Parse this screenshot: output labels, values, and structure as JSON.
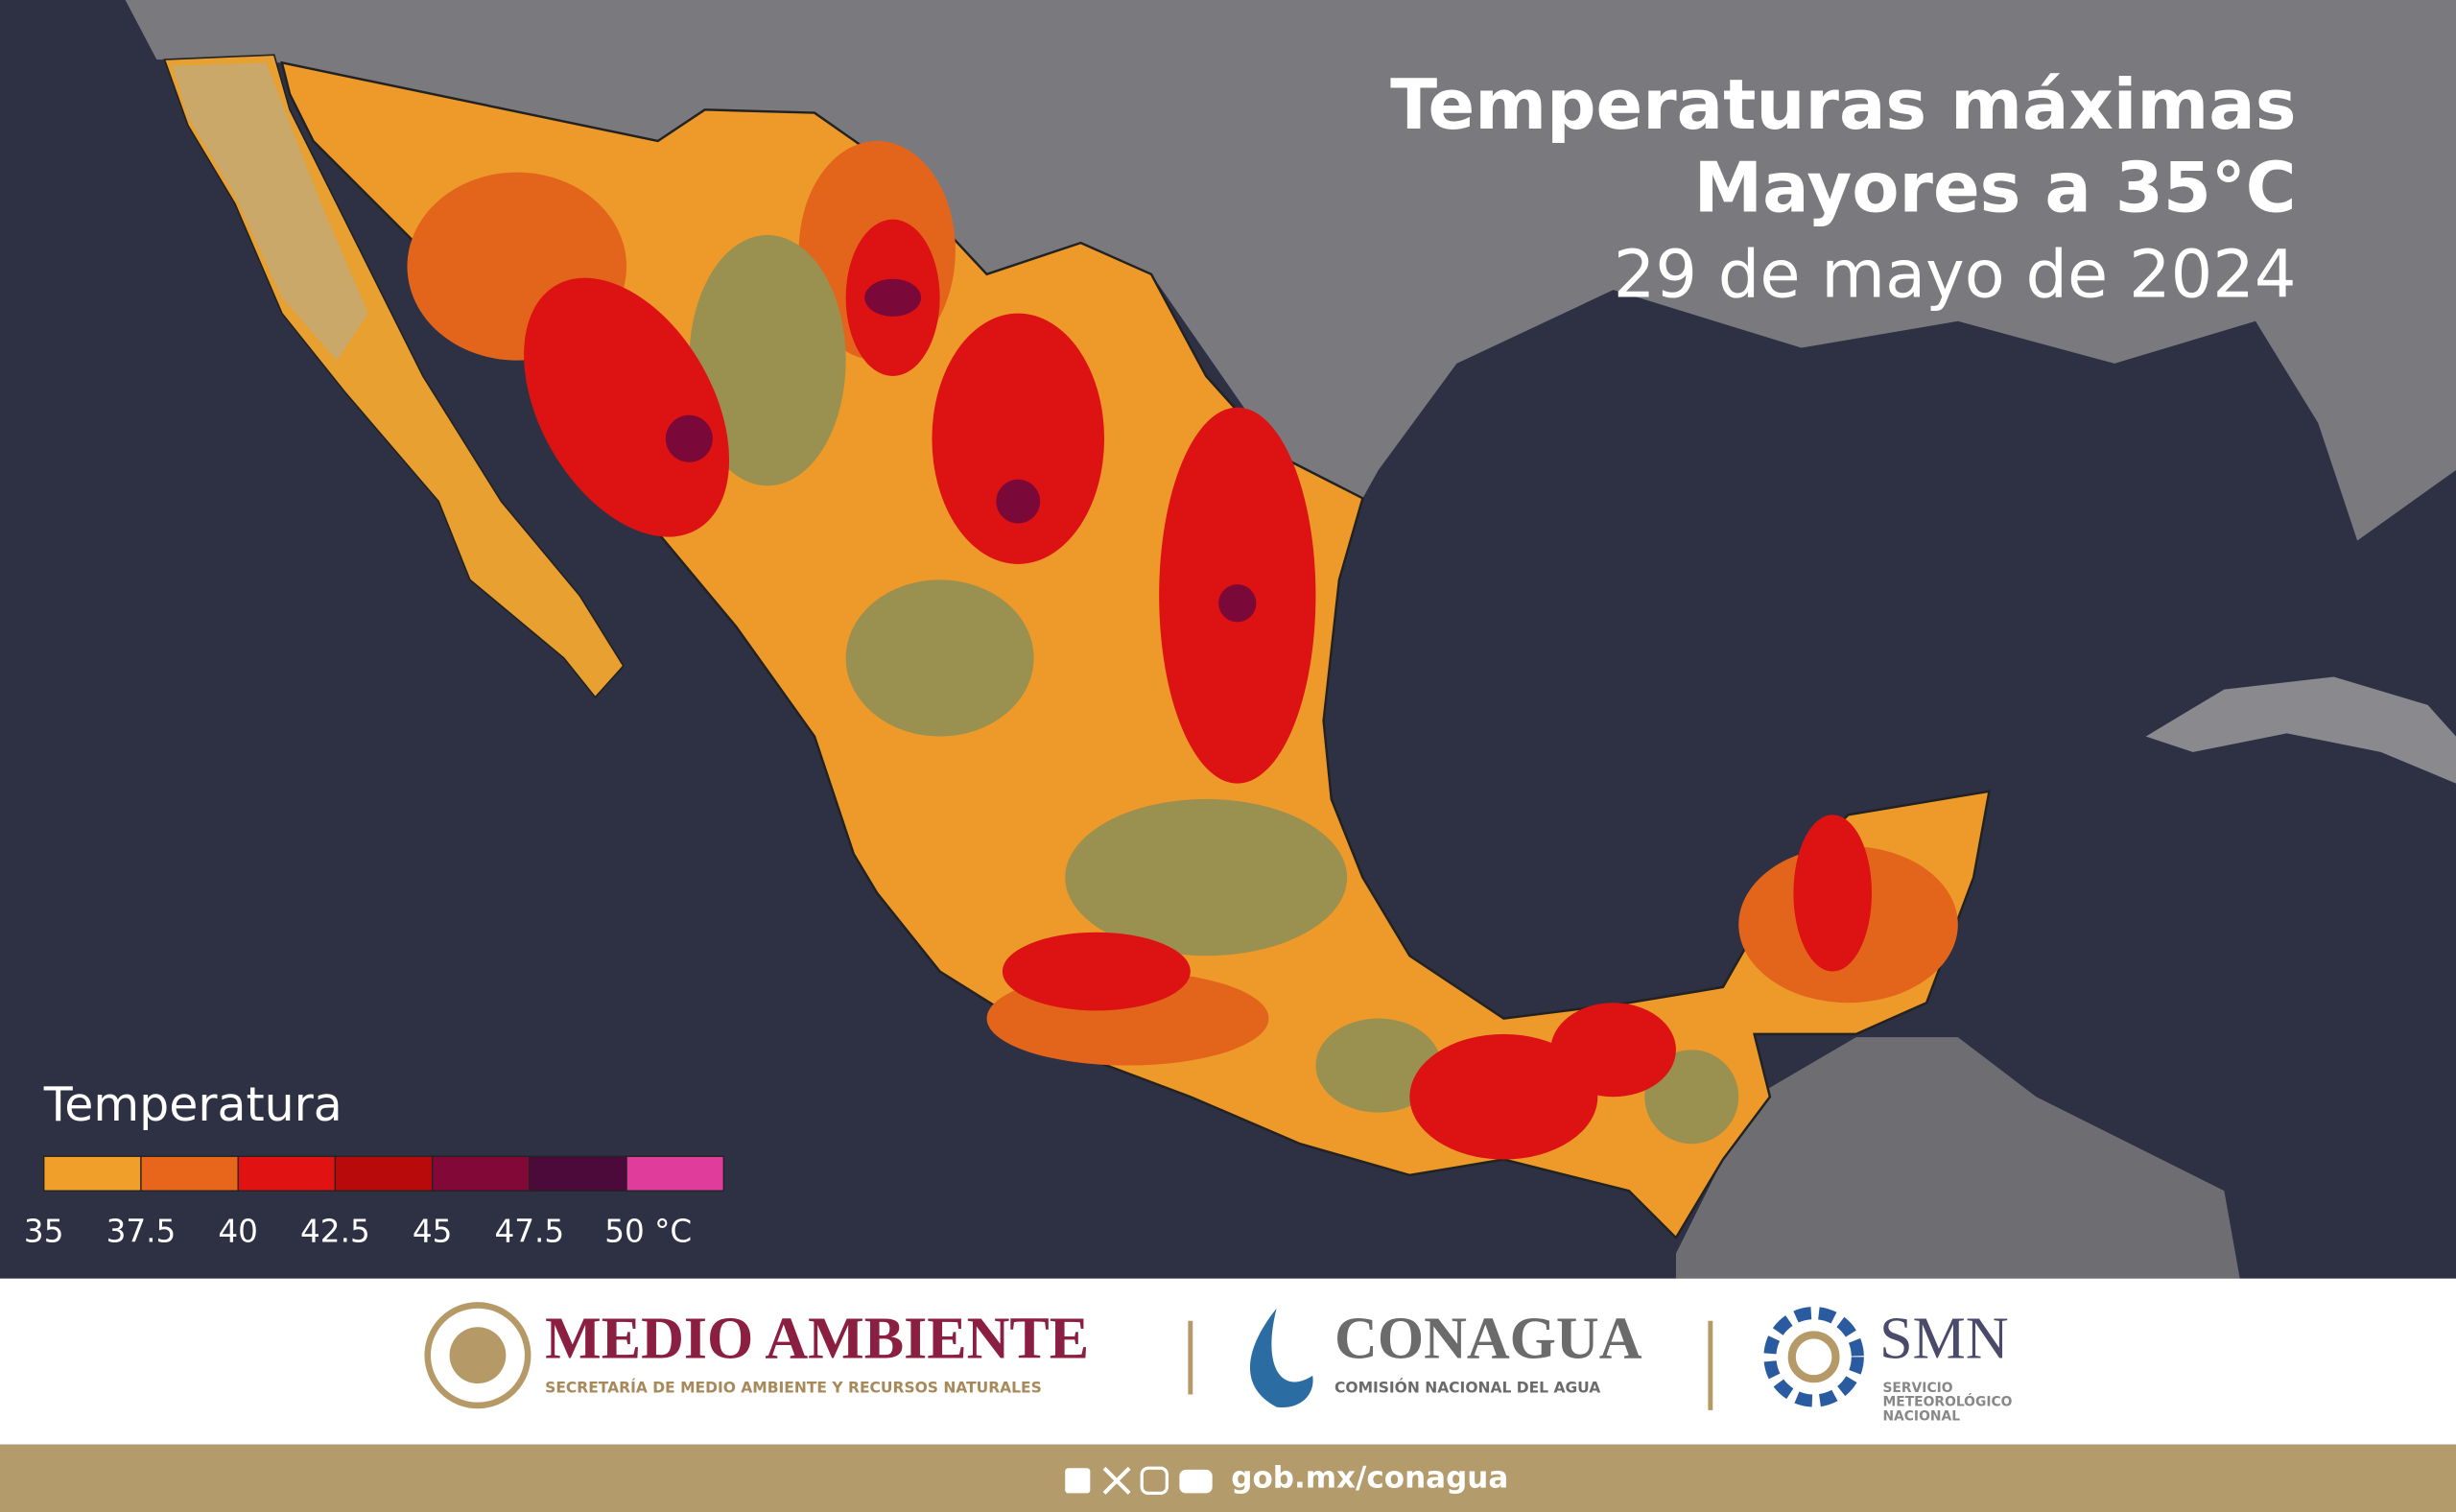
{
  "header": {
    "title_line1": "Temperaturas máximas",
    "title_line2": "Mayores a 35°C",
    "date": "29 de mayo de 2024"
  },
  "legend": {
    "title": "Temperatura",
    "colors": [
      "#f0a02a",
      "#e8661c",
      "#e01212",
      "#b80a0a",
      "#820838",
      "#4c0a3a",
      "#e03c9c"
    ],
    "ticks": [
      35,
      37.5,
      40,
      42.5,
      45,
      47.5,
      {
        "value": 50,
        "label": "50 °C"
      }
    ]
  },
  "footer": {
    "medio_ambiente": {
      "name": "MEDIO AMBIENTE",
      "subtitle": "SECRETARÍA DE MEDIO AMBIENTE Y RECURSOS NATURALES"
    },
    "conagua": {
      "name": "CONAGUA",
      "subtitle": "COMISIÓN NACIONAL DEL AGUA"
    },
    "smn": {
      "name": "SMN",
      "subtitle": [
        "SERVICIO",
        "METEOROLÓGICO",
        "NACIONAL"
      ]
    },
    "url": "gob.mx/conagua"
  }
}
